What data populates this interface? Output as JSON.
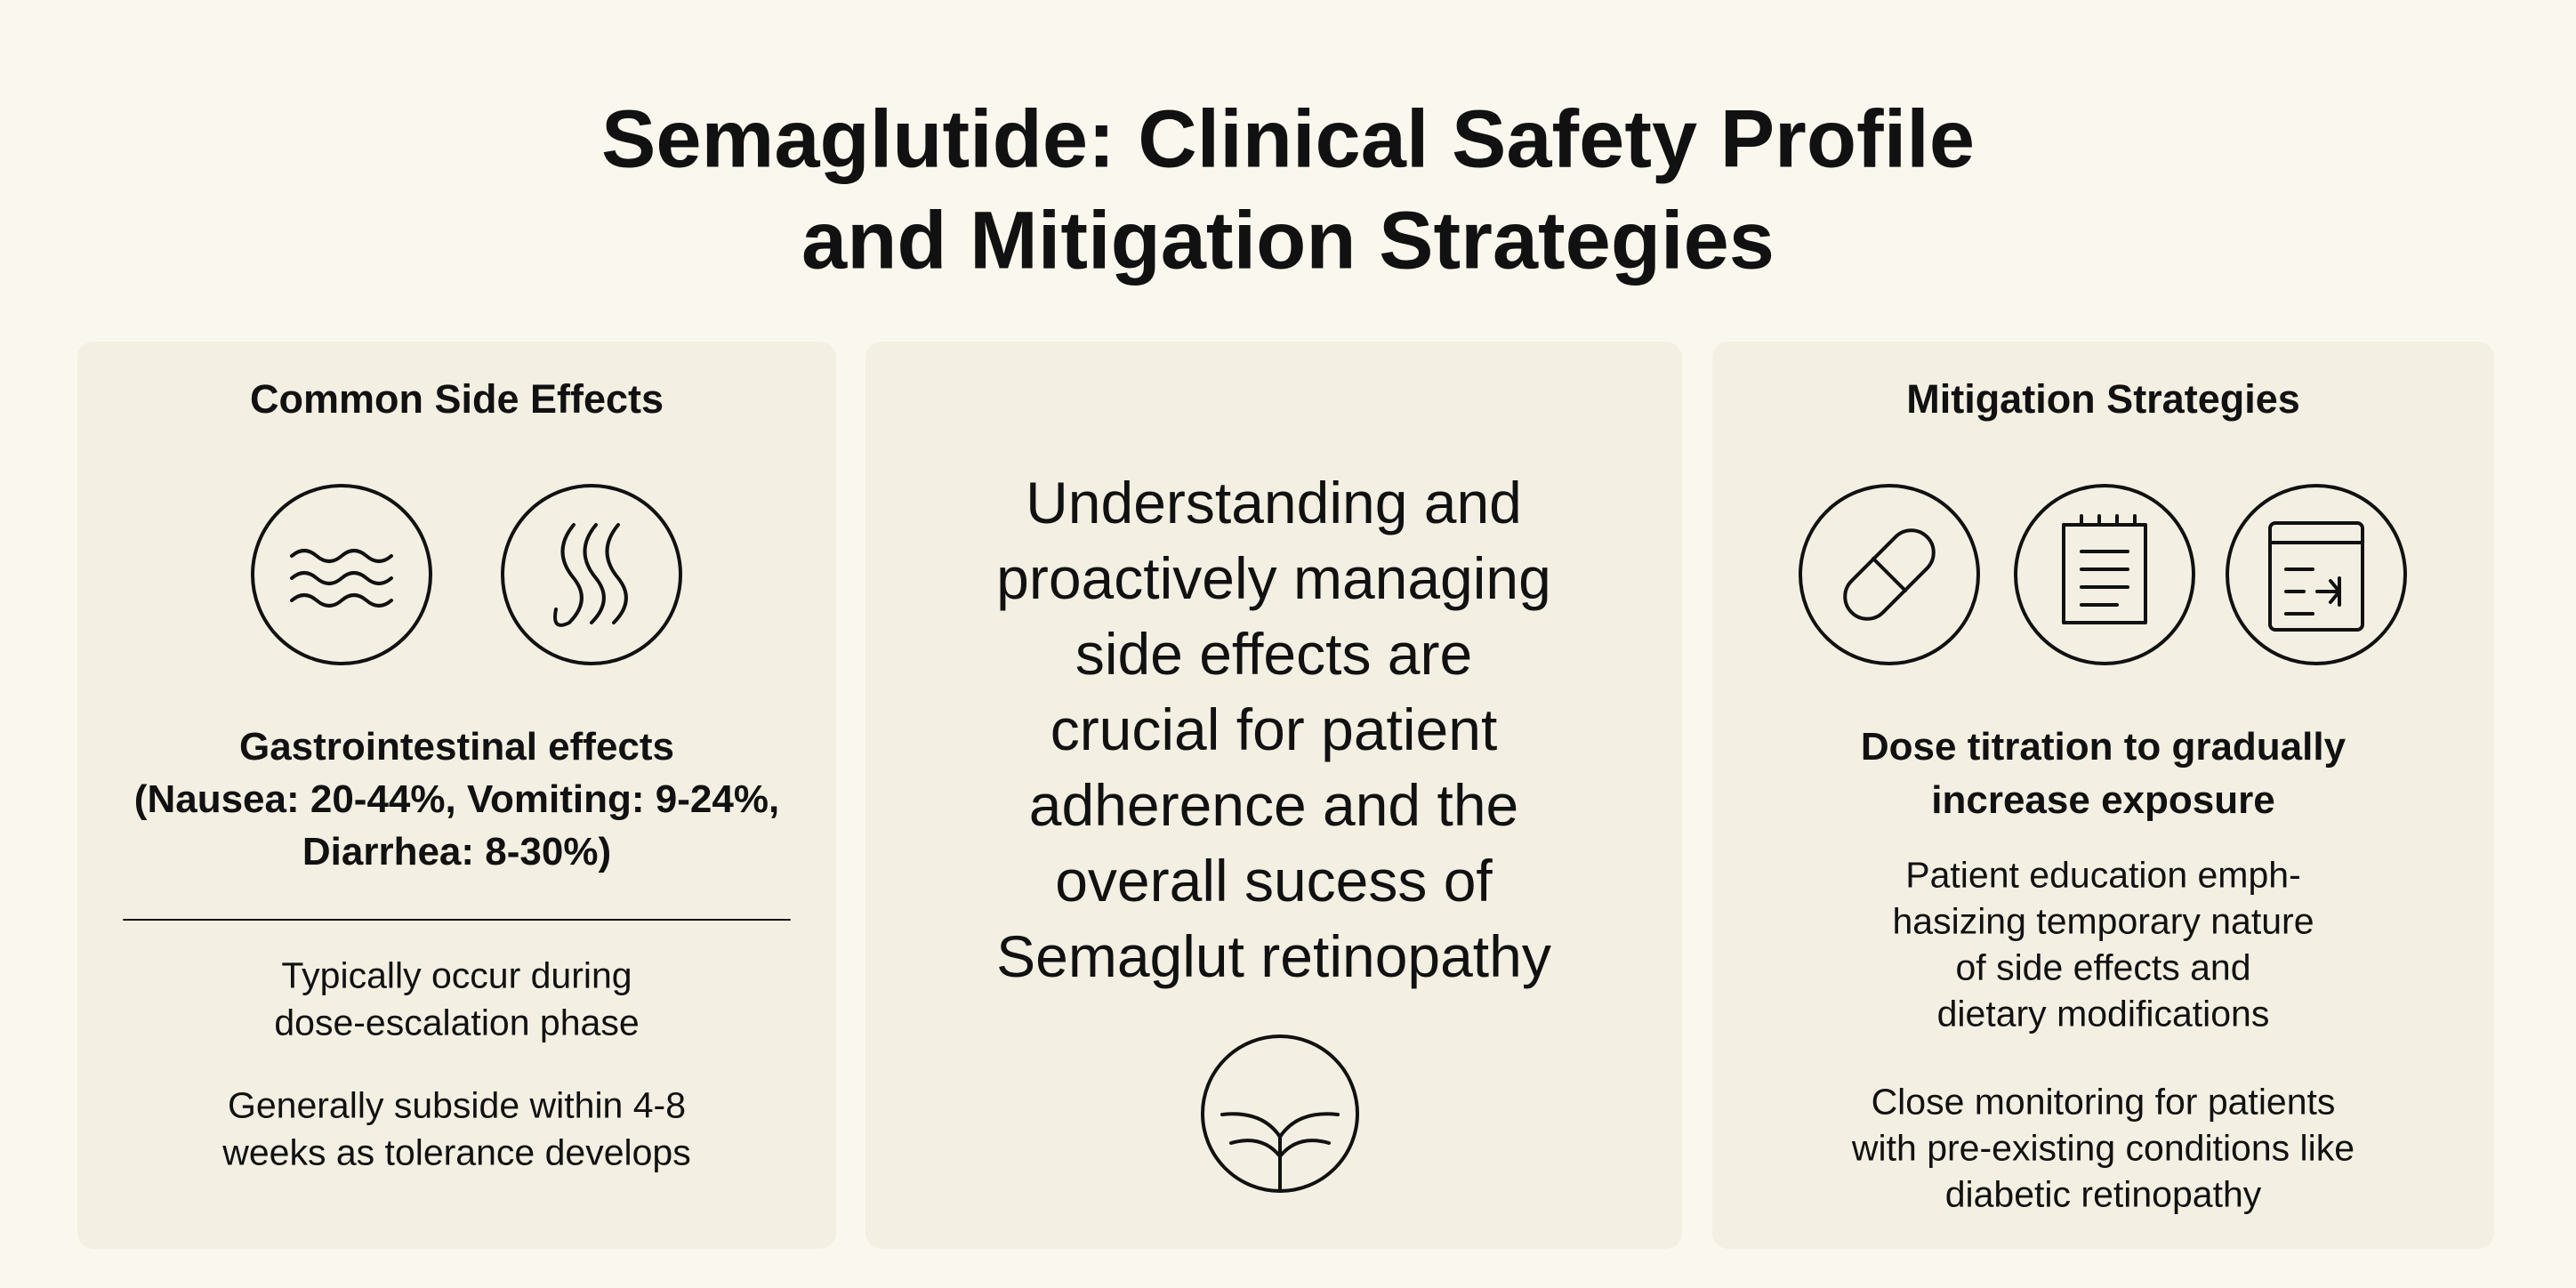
{
  "header": {
    "title_lines": [
      "Semaglutide: Clinical Safety Profile",
      "and Mitigation Strategies"
    ]
  },
  "left_panel": {
    "heading": "Common Side Effects",
    "highlight_lines": [
      "Gastrointestinal effects",
      "(Nausea: 20-44%, Vomiting: 9-24%,",
      "Diarrhea: 8-30%)"
    ],
    "notes": [
      [
        "Typically occur during",
        "dose-escalation phase"
      ],
      [
        "Generally subside within 4-8",
        "weeks as tolerance develops"
      ]
    ]
  },
  "center_panel": {
    "lines": [
      "Understanding and",
      "proactively managing",
      "side effects are",
      "crucial for patient",
      "adherence and the",
      "overall sucess of",
      "Semaglut retinopathy"
    ]
  },
  "right_panel": {
    "heading": "Mitigation Strategies",
    "highlight_lines": [
      "Dose titration to gradually",
      "increase exposure"
    ],
    "notes": [
      [
        "Patient education emph-",
        "hasizing temporary nature",
        "of side effects and",
        "dietary modifications"
      ],
      [
        "Close monitoring for patients",
        "with pre-existing conditions like",
        "diabetic retinopathy"
      ]
    ]
  }
}
